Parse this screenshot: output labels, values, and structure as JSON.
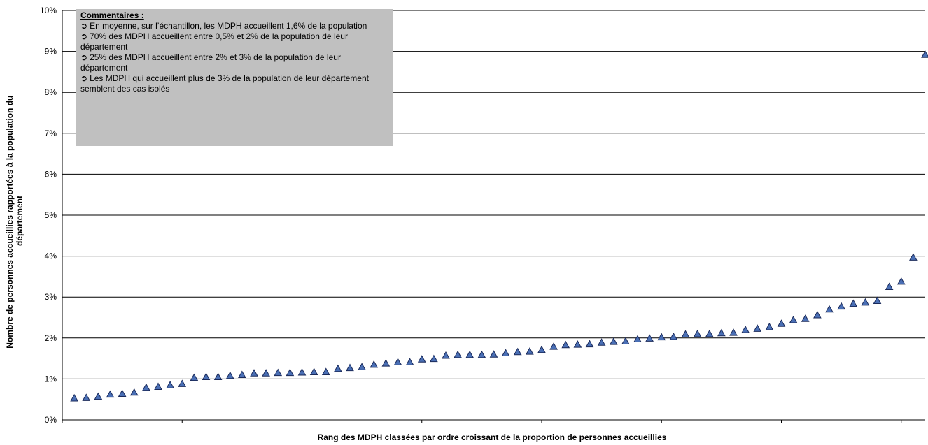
{
  "chart_data": {
    "type": "scatter",
    "marker": "triangle",
    "marker_color": "#4a6fb5",
    "marker_border": "#1a2a5a",
    "ylabel": "Nombre de personnes accueillies rapportées à la population du département",
    "xlabel": "Rang des MDPH classées par ordre croissant de la proportion de personnes accueillies",
    "y_ticks": [
      "0%",
      "1%",
      "2%",
      "3%",
      "4%",
      "5%",
      "6%",
      "7%",
      "8%",
      "9%",
      "10%"
    ],
    "ylim": [
      0,
      10
    ],
    "xlim": [
      0,
      72
    ],
    "x_tick_positions": [
      10,
      20,
      30,
      40,
      50,
      60,
      70
    ],
    "grid": true,
    "y": [
      0.53,
      0.54,
      0.57,
      0.62,
      0.64,
      0.67,
      0.79,
      0.81,
      0.85,
      0.88,
      1.03,
      1.05,
      1.05,
      1.08,
      1.1,
      1.14,
      1.14,
      1.15,
      1.15,
      1.16,
      1.17,
      1.17,
      1.25,
      1.27,
      1.29,
      1.35,
      1.38,
      1.41,
      1.41,
      1.48,
      1.49,
      1.57,
      1.59,
      1.59,
      1.59,
      1.6,
      1.63,
      1.66,
      1.67,
      1.71,
      1.79,
      1.83,
      1.84,
      1.85,
      1.89,
      1.91,
      1.92,
      1.97,
      1.99,
      2.02,
      2.03,
      2.09,
      2.1,
      2.1,
      2.12,
      2.13,
      2.2,
      2.23,
      2.27,
      2.35,
      2.44,
      2.47,
      2.56,
      2.7,
      2.77,
      2.84,
      2.87,
      2.91,
      3.25,
      3.38,
      3.97,
      8.92
    ]
  },
  "comments": {
    "title": "Commentaires :",
    "bullet_icon": "curved-arrow-icon",
    "lines": [
      "En moyenne, sur l’échantillon, les MDPH accueillent 1,6% de la population",
      "70% des MDPH accueillent entre 0,5% et 2% de la population de leur département",
      "25% des MDPH accueillent entre 2% et 3% de la population de leur département",
      "Les MDPH qui accueillent plus de 3% de la population de leur département semblent des cas isolés"
    ]
  }
}
